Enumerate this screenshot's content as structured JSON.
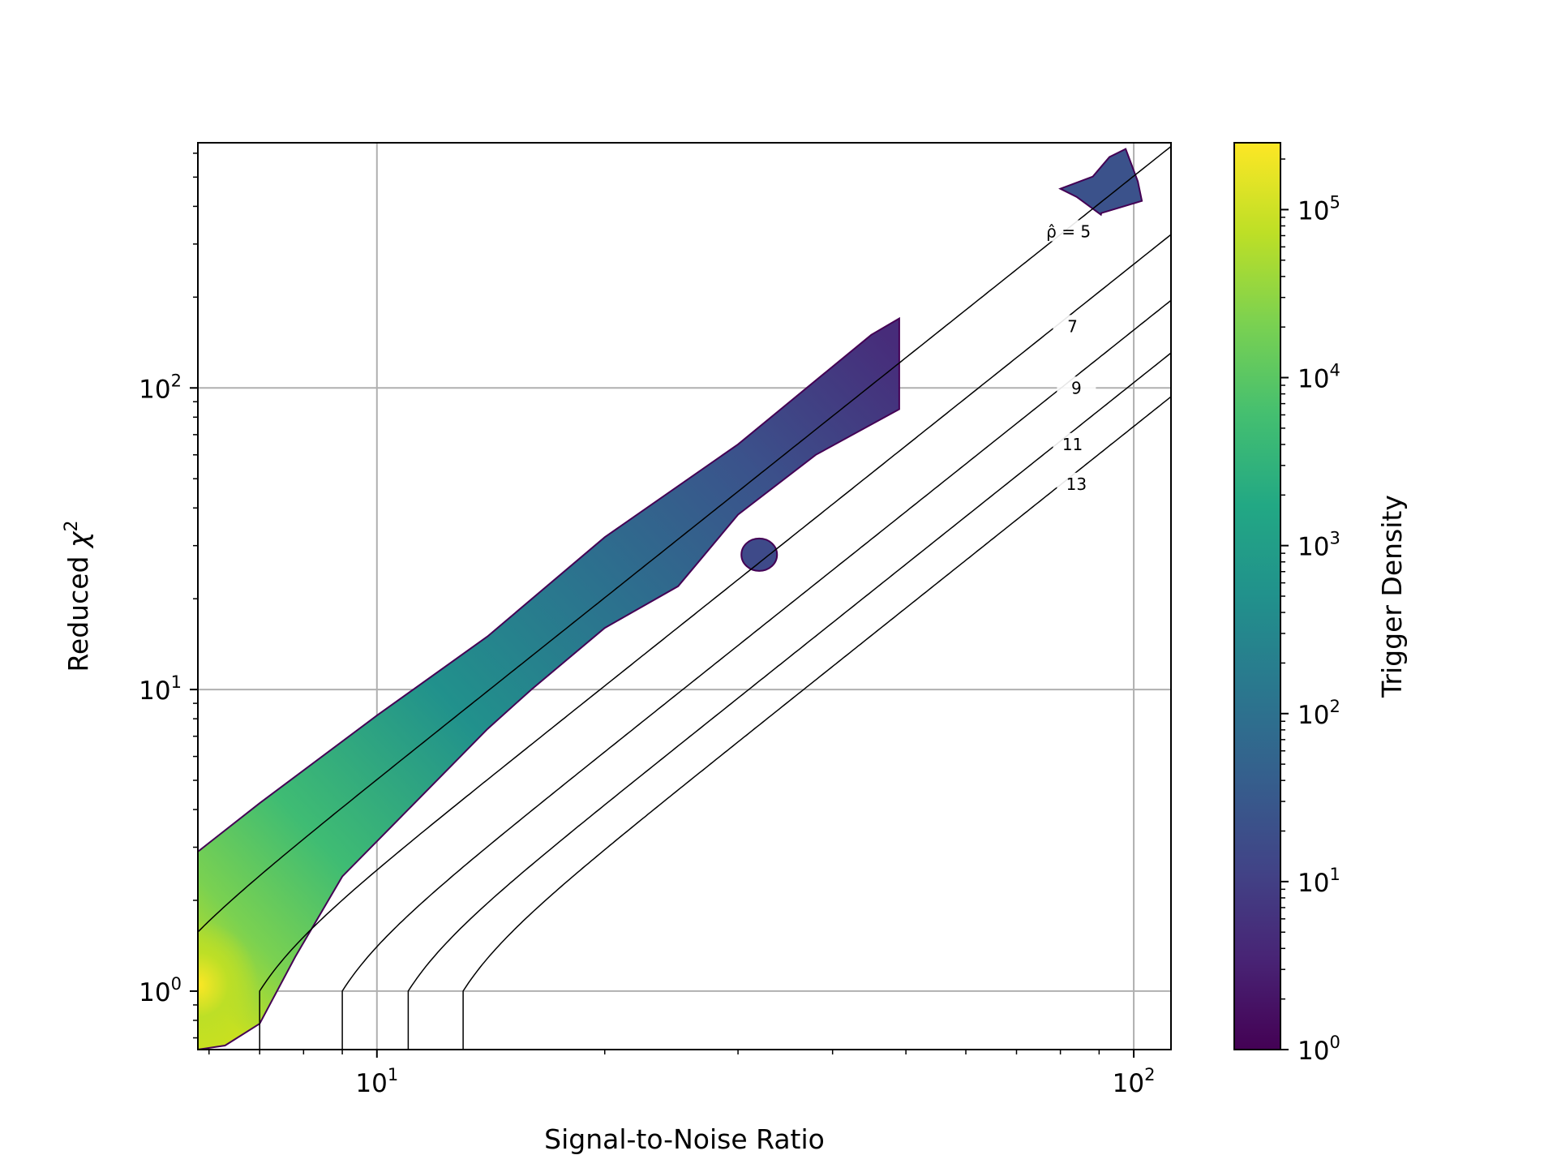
{
  "chart_data": {
    "type": "heatmap",
    "subtype": "hexbin",
    "title": "",
    "xlabel": "Signal-to-Noise Ratio",
    "ylabel": "Reduced χ²",
    "xscale": "log",
    "yscale": "log",
    "xlim": [
      5.8,
      112
    ],
    "ylim": [
      0.64,
      650
    ],
    "x_major_ticks": [
      {
        "value": 10,
        "label_base": "10",
        "label_exp": "1"
      },
      {
        "value": 100,
        "label_base": "10",
        "label_exp": "2"
      }
    ],
    "y_major_ticks": [
      {
        "value": 1,
        "label_base": "10",
        "label_exp": "0"
      },
      {
        "value": 10,
        "label_base": "10",
        "label_exp": "1"
      },
      {
        "value": 100,
        "label_base": "10",
        "label_exp": "2"
      }
    ],
    "grid": true,
    "colorbar": {
      "label": "Trigger Density",
      "scale": "log",
      "colormap": "viridis",
      "range": [
        1,
        250000
      ],
      "ticks": [
        {
          "value": 1,
          "label_base": "10",
          "label_exp": "0"
        },
        {
          "value": 10,
          "label_base": "10",
          "label_exp": "1"
        },
        {
          "value": 100,
          "label_base": "10",
          "label_exp": "2"
        },
        {
          "value": 1000,
          "label_base": "10",
          "label_exp": "3"
        },
        {
          "value": 10000,
          "label_base": "10",
          "label_exp": "4"
        },
        {
          "value": 100000,
          "label_base": "10",
          "label_exp": "5"
        }
      ]
    },
    "contours": [
      {
        "rho": 5,
        "label": "ρ̂ = 5",
        "label_at": [
          82,
          330
        ]
      },
      {
        "rho": 7,
        "label": "7",
        "label_at": [
          83,
          160
        ]
      },
      {
        "rho": 9,
        "label": "9",
        "label_at": [
          84,
          100
        ]
      },
      {
        "rho": 11,
        "label": "11",
        "label_at": [
          83,
          65
        ]
      },
      {
        "rho": 13,
        "label": "13",
        "label_at": [
          84,
          48
        ]
      }
    ],
    "density_regions": [
      {
        "name": "main-band",
        "upper_edge": [
          [
            5.8,
            2.9
          ],
          [
            7,
            4.2
          ],
          [
            10,
            8.2
          ],
          [
            14,
            15
          ],
          [
            20,
            32
          ],
          [
            30,
            65
          ],
          [
            45,
            150
          ],
          [
            49,
            170
          ]
        ],
        "lower_edge": [
          [
            49,
            85
          ],
          [
            38,
            60
          ],
          [
            30,
            38
          ],
          [
            25,
            22
          ],
          [
            20,
            16
          ],
          [
            16,
            10
          ],
          [
            14,
            7.4
          ],
          [
            11,
            4
          ],
          [
            9,
            2.4
          ],
          [
            7.8,
            1.3
          ],
          [
            7,
            0.78
          ],
          [
            6.3,
            0.66
          ],
          [
            5.8,
            0.64
          ]
        ],
        "peak": [
          5.8,
          1.05
        ],
        "peak_density": 200000
      },
      {
        "name": "blob-mid",
        "center": [
          32,
          28
        ],
        "density": 30
      },
      {
        "name": "blob-top",
        "extent_x": [
          80,
          100
        ],
        "extent_y": [
          380,
          620
        ],
        "density": 40
      }
    ]
  }
}
